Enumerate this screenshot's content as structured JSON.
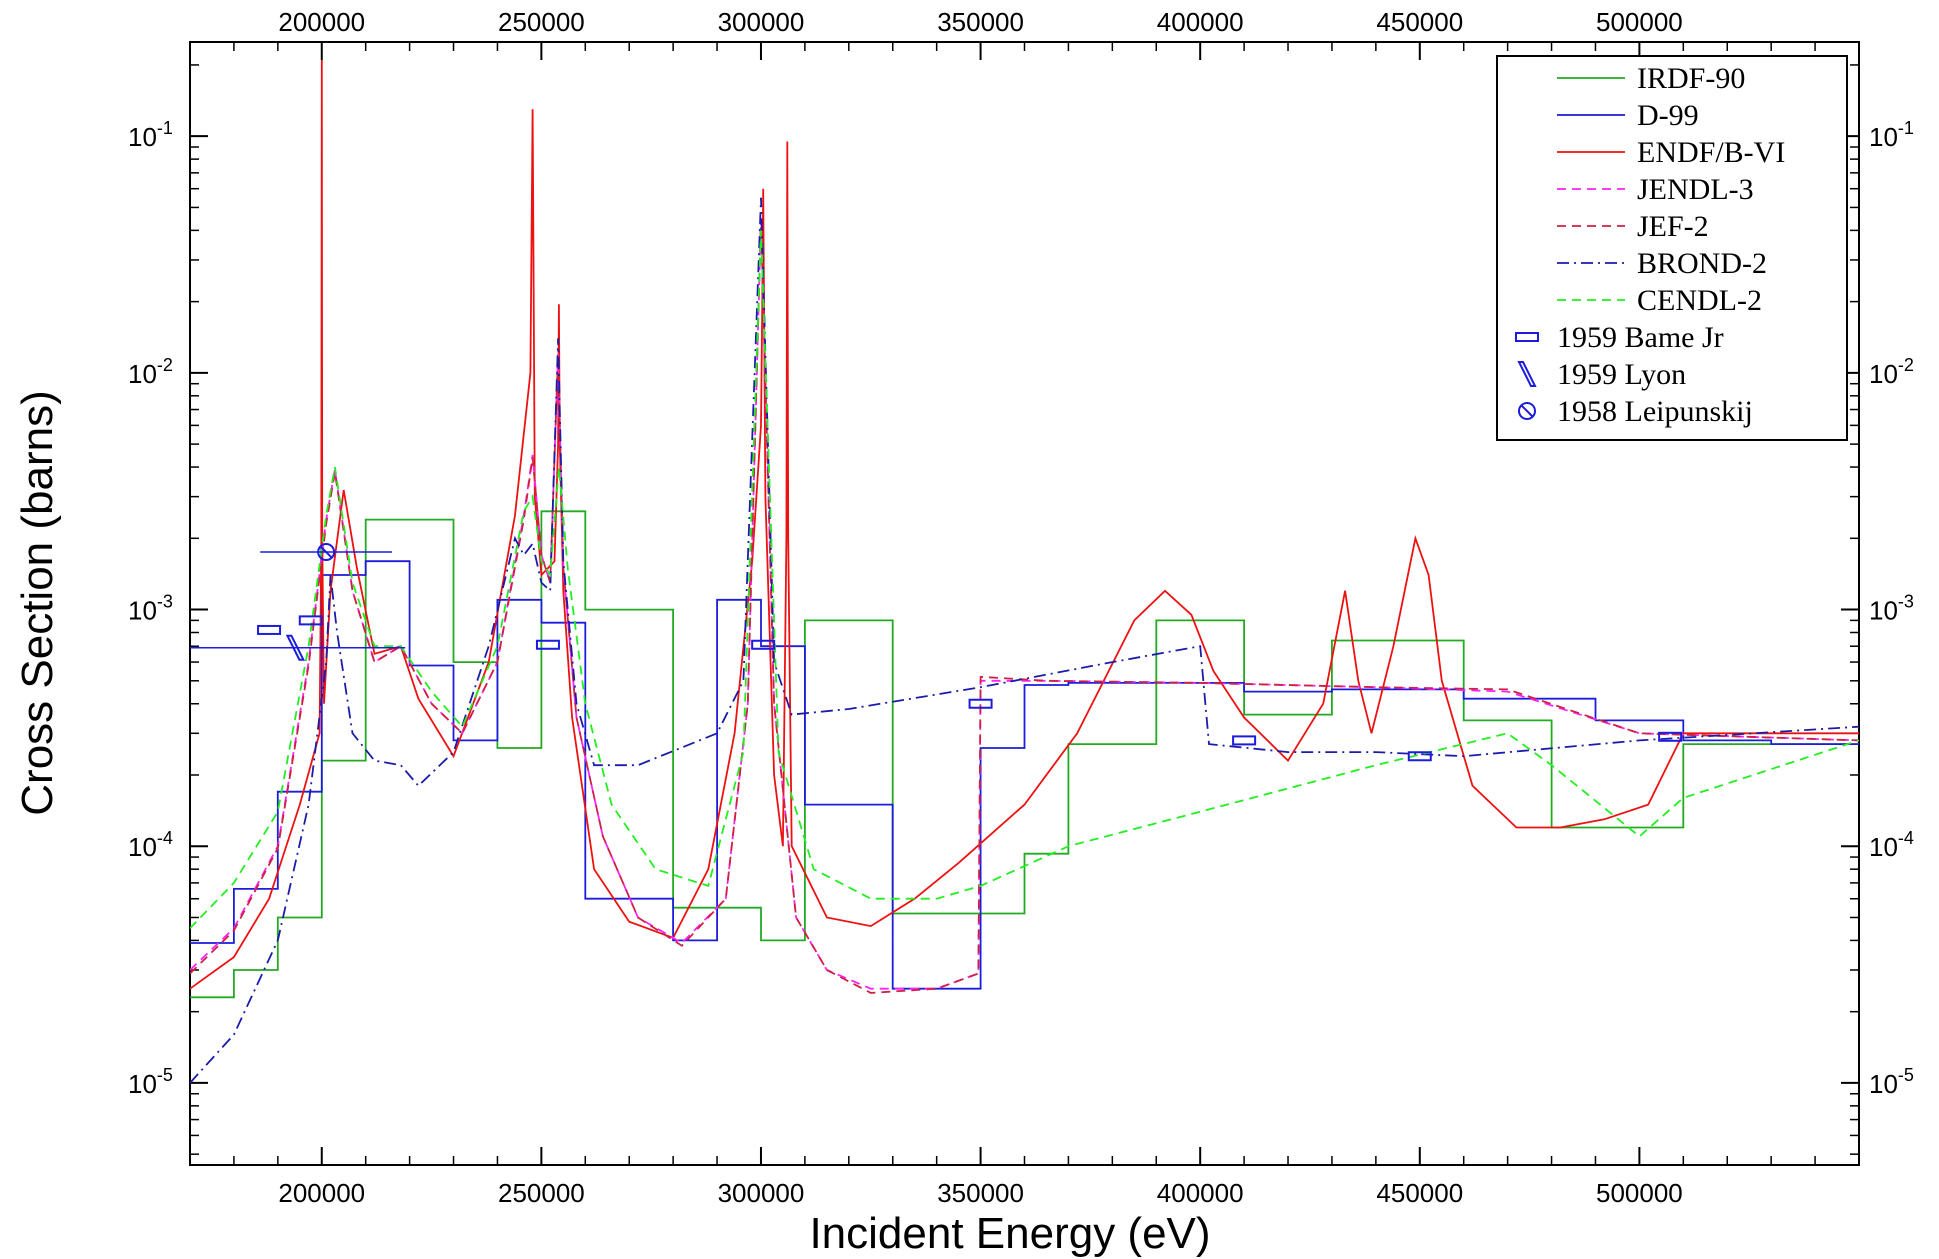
{
  "chart_data": {
    "type": "line",
    "xlabel": "Incident Energy (eV)",
    "ylabel": "Cross Section (barns)",
    "x_scale": "linear",
    "y_scale": "log",
    "xlim": [
      170000,
      550000
    ],
    "ylim": [
      4.5e-06,
      0.25
    ],
    "x_ticks": [
      200000,
      250000,
      300000,
      350000,
      400000,
      450000,
      500000
    ],
    "x_tick_labels": [
      "200000",
      "250000",
      "300000",
      "350000",
      "400000",
      "450000",
      "500000"
    ],
    "y_ticks": [
      {
        "value": 0.1,
        "base": "10",
        "exp": "-1"
      },
      {
        "value": 0.01,
        "base": "10",
        "exp": "-2"
      },
      {
        "value": 0.001,
        "base": "10",
        "exp": "-3"
      },
      {
        "value": 0.0001,
        "base": "10",
        "exp": "-4"
      },
      {
        "value": 1e-05,
        "base": "10",
        "exp": "-5"
      }
    ],
    "grid": false,
    "legend_position": "top-right",
    "series": [
      {
        "name": "IRDF-90",
        "style": "solid",
        "color": "#22aa22",
        "kind": "step",
        "x": [
          170000,
          180000,
          190000,
          200000,
          210000,
          230000,
          240000,
          250000,
          260000,
          280000,
          300000,
          310000,
          330000,
          360000,
          370000,
          390000,
          410000,
          430000,
          460000,
          480000,
          510000,
          550000
        ],
        "y": [
          2.3e-05,
          3e-05,
          5e-05,
          0.00023,
          0.0024,
          0.0006,
          0.00026,
          0.0026,
          0.001,
          5.5e-05,
          4e-05,
          0.0009,
          5.2e-05,
          9.3e-05,
          0.00027,
          0.0009,
          0.00036,
          0.00074,
          0.00034,
          0.00012,
          0.00027,
          0.00027
        ]
      },
      {
        "name": "D-99",
        "style": "solid",
        "color": "#1c1cdd",
        "kind": "step",
        "x": [
          170000,
          180000,
          190000,
          200000,
          210000,
          220000,
          230000,
          240000,
          250000,
          260000,
          280000,
          290000,
          300000,
          310000,
          330000,
          350000,
          360000,
          370000,
          380000,
          410000,
          430000,
          460000,
          490000,
          510000,
          530000,
          550000
        ],
        "y": [
          3.9e-05,
          6.6e-05,
          0.00017,
          0.0014,
          0.0016,
          0.00058,
          0.00028,
          0.0011,
          0.00088,
          6e-05,
          4e-05,
          0.0011,
          0.0007,
          0.00015,
          2.5e-05,
          0.00026,
          0.00048,
          0.00049,
          0.00049,
          0.00045,
          0.00046,
          0.00042,
          0.00034,
          0.00028,
          0.00027,
          0.00027
        ]
      },
      {
        "name": "ENDF/B-VI",
        "style": "solid",
        "color": "#ee1111",
        "kind": "line",
        "x": [
          170000,
          180000,
          188000,
          195000,
          199500,
          199900,
          200000,
          200100,
          200500,
          202000,
          205000,
          208000,
          212000,
          218000,
          222000,
          230000,
          238000,
          244000,
          247500,
          247900,
          248000,
          248100,
          248500,
          250000,
          253000,
          253800,
          254000,
          254200,
          255000,
          257000,
          262000,
          270000,
          280000,
          288000,
          294000,
          298000,
          300000,
          300300,
          300500,
          300700,
          301000,
          303000,
          305000,
          305800,
          306000,
          306200,
          307000,
          315000,
          325000,
          335000,
          345000,
          360000,
          372000,
          385000,
          392000,
          398000,
          403000,
          410000,
          420000,
          428000,
          433000,
          436000,
          439000,
          444000,
          449000,
          452000,
          455000,
          462000,
          472000,
          482000,
          492000,
          502000,
          510000,
          550000
        ],
        "y": [
          2.5e-05,
          3.4e-05,
          6e-05,
          0.00015,
          0.0003,
          0.002,
          0.21,
          0.002,
          0.0004,
          0.0012,
          0.0032,
          0.0015,
          0.00065,
          0.0007,
          0.00042,
          0.00024,
          0.0006,
          0.0025,
          0.01,
          0.07,
          0.13,
          0.07,
          0.003,
          0.0014,
          0.0016,
          0.005,
          0.0195,
          0.005,
          0.0012,
          0.00035,
          8e-05,
          4.8e-05,
          4.1e-05,
          8e-05,
          0.0003,
          0.0016,
          0.006,
          0.02,
          0.06,
          0.02,
          0.003,
          0.0002,
          0.0001,
          0.002,
          0.095,
          0.002,
          0.0001,
          5e-05,
          4.6e-05,
          6e-05,
          8.5e-05,
          0.00015,
          0.0003,
          0.0009,
          0.0012,
          0.00095,
          0.00055,
          0.00035,
          0.00023,
          0.0004,
          0.0012,
          0.0005,
          0.0003,
          0.0007,
          0.002,
          0.0014,
          0.0005,
          0.00018,
          0.00012,
          0.00012,
          0.00013,
          0.00015,
          0.0003,
          0.0003
        ]
      },
      {
        "name": "JENDL-3",
        "style": "dashed",
        "color": "#ff22ff",
        "kind": "line",
        "x": [
          170000,
          180000,
          190000,
          197000,
          201000,
          203000,
          207000,
          212000,
          218000,
          225000,
          232000,
          240000,
          246000,
          248000,
          250000,
          252000,
          253800,
          255000,
          258000,
          264000,
          272000,
          282000,
          292000,
          297000,
          300000,
          303000,
          308000,
          315000,
          325000,
          340000,
          349500,
          350000,
          365000,
          400000,
          440000,
          470000,
          500000,
          550000
        ],
        "y": [
          3e-05,
          4.5e-05,
          0.0001,
          0.0006,
          0.0024,
          0.0039,
          0.0012,
          0.0006,
          0.0007,
          0.0004,
          0.0003,
          0.0006,
          0.0025,
          0.0045,
          0.0017,
          0.0013,
          0.012,
          0.0015,
          0.00035,
          0.00011,
          5e-05,
          3.9e-05,
          6e-05,
          0.0004,
          0.045,
          0.0004,
          5e-05,
          3e-05,
          2.5e-05,
          2.5e-05,
          2.9e-05,
          0.0005,
          0.0005,
          0.00049,
          0.00047,
          0.00045,
          0.0003,
          0.00028
        ]
      },
      {
        "name": "JEF-2",
        "style": "dashed",
        "color": "#cc2244",
        "kind": "line",
        "x": [
          170000,
          180000,
          190000,
          197000,
          201000,
          203000,
          207000,
          212000,
          218000,
          225000,
          232000,
          240000,
          246000,
          248000,
          250000,
          252000,
          253800,
          255000,
          258000,
          264000,
          272000,
          282000,
          292000,
          297000,
          300000,
          303000,
          308000,
          315000,
          325000,
          340000,
          349500,
          350000,
          365000,
          400000,
          440000,
          470000,
          500000,
          550000
        ],
        "y": [
          2.9e-05,
          4.4e-05,
          9.8e-05,
          0.00058,
          0.0023,
          0.0038,
          0.0012,
          0.0006,
          0.0007,
          0.0004,
          0.0003,
          0.0006,
          0.0024,
          0.0044,
          0.0017,
          0.0013,
          0.012,
          0.0015,
          0.00035,
          0.00011,
          5e-05,
          3.8e-05,
          6e-05,
          0.0004,
          0.045,
          0.0004,
          5e-05,
          3e-05,
          2.4e-05,
          2.5e-05,
          2.9e-05,
          0.00052,
          0.0005,
          0.00049,
          0.00047,
          0.00046,
          0.0003,
          0.00028
        ]
      },
      {
        "name": "BROND-2",
        "style": "dashdot",
        "color": "#1c1caa",
        "kind": "line",
        "x": [
          170000,
          180000,
          190000,
          197000,
          201000,
          202000,
          203500,
          207000,
          212000,
          218000,
          222000,
          230000,
          238000,
          244000,
          246000,
          248000,
          250000,
          252000,
          253800,
          255000,
          258000,
          262000,
          272000,
          290000,
          296000,
          300000,
          303000,
          307000,
          320000,
          350000,
          380000,
          400000,
          402000,
          420000,
          440000,
          460000,
          500000,
          550000
        ],
        "y": [
          1e-05,
          1.6e-05,
          4e-05,
          0.00015,
          0.0006,
          0.0014,
          0.0008,
          0.0003,
          0.00023,
          0.00022,
          0.00018,
          0.00025,
          0.0007,
          0.002,
          0.0017,
          0.0019,
          0.0013,
          0.0012,
          0.014,
          0.0016,
          0.0004,
          0.00022,
          0.00022,
          0.0003,
          0.0005,
          0.055,
          0.0006,
          0.00036,
          0.00038,
          0.00047,
          0.0006,
          0.0007,
          0.00027,
          0.00025,
          0.00025,
          0.00024,
          0.00028,
          0.00032
        ]
      },
      {
        "name": "CENDL-2",
        "style": "dashed",
        "color": "#22ee22",
        "kind": "line",
        "x": [
          170000,
          180000,
          190000,
          197000,
          201000,
          203000,
          207000,
          212000,
          218000,
          225000,
          232000,
          240000,
          246000,
          248000,
          250000,
          252000,
          254000,
          256000,
          260000,
          266000,
          276000,
          288000,
          296000,
          300000,
          304000,
          312000,
          325000,
          340000,
          350000,
          370000,
          400000,
          440000,
          470000,
          480000,
          500000,
          510000,
          550000
        ],
        "y": [
          4.5e-05,
          7e-05,
          0.00014,
          0.0007,
          0.0025,
          0.004,
          0.0013,
          0.0007,
          0.0007,
          0.00045,
          0.00032,
          0.0007,
          0.0026,
          0.003,
          0.0016,
          0.0014,
          0.004,
          0.0015,
          0.0004,
          0.00015,
          8e-05,
          6.8e-05,
          0.00025,
          0.04,
          0.00025,
          8e-05,
          6e-05,
          6e-05,
          6.8e-05,
          0.0001,
          0.00014,
          0.00022,
          0.0003,
          0.00022,
          0.00011,
          0.00016,
          0.00028
        ]
      }
    ],
    "experimental": [
      {
        "name": "1959 Bame Jr",
        "marker": "rect",
        "color": "#1c1cdd",
        "points": [
          {
            "x": 188000,
            "y": 0.00082,
            "xerr": 0
          },
          {
            "x": 197500,
            "y": 0.0009,
            "xerr": 0
          },
          {
            "x": 251500,
            "y": 0.00071,
            "xerr": 0
          },
          {
            "x": 300500,
            "y": 0.00071,
            "xerr": 0
          },
          {
            "x": 350000,
            "y": 0.0004,
            "xerr": 0
          },
          {
            "x": 410000,
            "y": 0.00028,
            "xerr": 0
          },
          {
            "x": 450000,
            "y": 0.00024,
            "xerr": 0
          },
          {
            "x": 507000,
            "y": 0.00029,
            "xerr": 0
          }
        ]
      },
      {
        "name": "1959 Lyon",
        "marker": "parallelogram",
        "color": "#1c1cdd",
        "points": [
          {
            "x": 194000,
            "y": 0.00069,
            "xerr": 25000
          }
        ]
      },
      {
        "name": "1958 Leipunskij",
        "marker": "circle-slash",
        "color": "#1c1cdd",
        "points": [
          {
            "x": 201000,
            "y": 0.00175,
            "xerr": 15000
          }
        ]
      }
    ]
  }
}
